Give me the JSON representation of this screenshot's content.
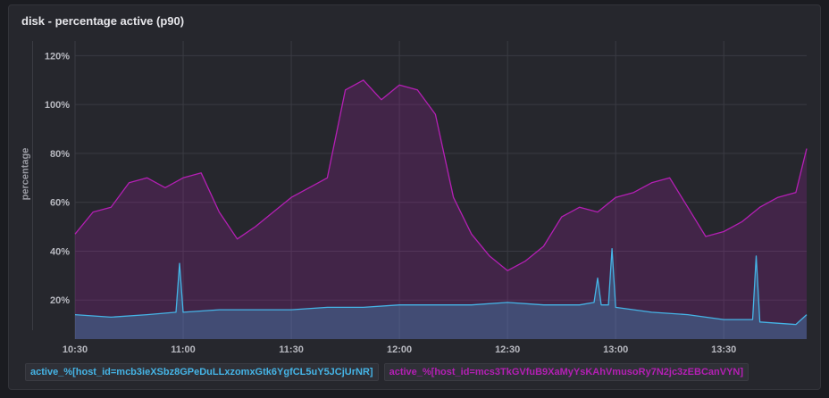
{
  "panel": {
    "title": "disk - percentage active (p90)"
  },
  "chart_data": {
    "type": "area",
    "title": "disk - percentage active (p90)",
    "xlabel": "",
    "ylabel": "percentage",
    "x_ticks": [
      "10:30",
      "11:00",
      "11:30",
      "12:00",
      "12:30",
      "13:00",
      "13:30"
    ],
    "y_ticks": [
      "20%",
      "40%",
      "60%",
      "80%",
      "100%",
      "120%"
    ],
    "y_tick_values": [
      20,
      40,
      60,
      80,
      100,
      120
    ],
    "xlim": [
      "10:30",
      "13:53"
    ],
    "ylim": [
      4,
      126
    ],
    "grid": true,
    "legend_position": "bottom-left",
    "series": [
      {
        "name": "active_%[host_id=mcb3ieXSbz8GPeDuLLxzomxGtk6YgfCL5uY5JCjUrNR]",
        "color": "#45b4e6",
        "x": [
          "10:30",
          "10:40",
          "10:50",
          "10:58",
          "10:59",
          "11:00",
          "11:10",
          "11:20",
          "11:30",
          "11:40",
          "11:50",
          "12:00",
          "12:10",
          "12:20",
          "12:30",
          "12:40",
          "12:50",
          "12:54",
          "12:55",
          "12:56",
          "12:58",
          "12:59",
          "13:00",
          "13:10",
          "13:20",
          "13:30",
          "13:38",
          "13:39",
          "13:40",
          "13:50",
          "13:53"
        ],
        "values": [
          14,
          13,
          14,
          15,
          35,
          15,
          16,
          16,
          16,
          17,
          17,
          18,
          18,
          18,
          19,
          18,
          18,
          19,
          29,
          18,
          18,
          41,
          17,
          15,
          14,
          12,
          12,
          38,
          11,
          10,
          14
        ]
      },
      {
        "name": "active_%[host_id=mcs3TkGVfuB9XaMyYsKAhVmusoRy7N2jc3zEBCanVYN]",
        "color": "#b41fb4",
        "x": [
          "10:30",
          "10:35",
          "10:40",
          "10:45",
          "10:50",
          "10:55",
          "11:00",
          "11:05",
          "11:10",
          "11:15",
          "11:20",
          "11:25",
          "11:30",
          "11:35",
          "11:40",
          "11:45",
          "11:50",
          "11:55",
          "12:00",
          "12:05",
          "12:10",
          "12:15",
          "12:20",
          "12:25",
          "12:30",
          "12:35",
          "12:40",
          "12:45",
          "12:50",
          "12:55",
          "13:00",
          "13:05",
          "13:10",
          "13:15",
          "13:20",
          "13:25",
          "13:30",
          "13:35",
          "13:40",
          "13:45",
          "13:50",
          "13:53"
        ],
        "values": [
          47,
          56,
          58,
          68,
          70,
          66,
          70,
          72,
          56,
          45,
          50,
          56,
          62,
          66,
          70,
          106,
          110,
          102,
          108,
          106,
          96,
          62,
          47,
          38,
          32,
          36,
          42,
          54,
          58,
          56,
          62,
          64,
          68,
          70,
          58,
          46,
          48,
          52,
          58,
          62,
          64,
          82
        ]
      }
    ]
  }
}
